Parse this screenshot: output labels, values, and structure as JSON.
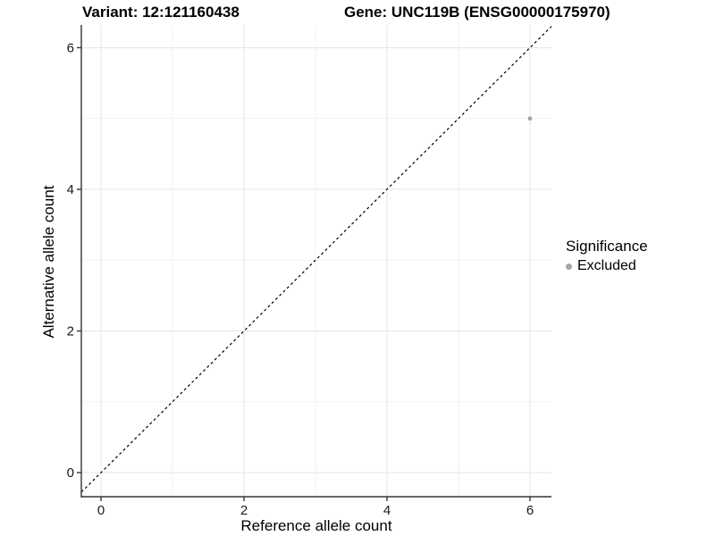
{
  "chart_data": {
    "type": "scatter",
    "title_left": "Variant: 12:121160438",
    "title_right": "Gene: UNC119B (ENSG00000175970)",
    "xlabel": "Reference allele count",
    "ylabel": "Alternative allele count",
    "xlim": [
      -0.275,
      6.3
    ],
    "ylim": [
      -0.34,
      6.32
    ],
    "xticks": [
      "0",
      "2",
      "4",
      "6"
    ],
    "yticks": [
      "0",
      "2",
      "4",
      "6"
    ],
    "xminor": [
      1,
      3,
      5
    ],
    "yminor": [
      1,
      3,
      5
    ],
    "grid": "major+minor, on",
    "identity_line": {
      "slope": 1,
      "intercept": 0,
      "style": "dashed",
      "color": "#000000"
    },
    "series": [
      {
        "name": "Excluded",
        "color": "#a5a5a5",
        "points": [
          {
            "x": 6,
            "y": 5
          }
        ]
      }
    ],
    "legend": {
      "title": "Significance",
      "position": "right",
      "entries": [
        {
          "label": "Excluded",
          "color": "#a5a5a5"
        }
      ]
    },
    "colors": {
      "background": "#ffffff",
      "axis_line": "#333333",
      "tick_label": "#1a1a1a",
      "grid_major": "#e5e5e5",
      "grid_minor": "#f2f2f2"
    }
  }
}
